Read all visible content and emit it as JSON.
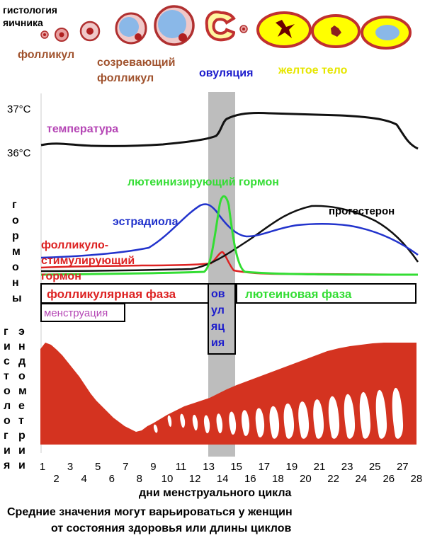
{
  "ovary": {
    "title_line1": "гистология",
    "title_line2": "яичника",
    "stage_follicle": "фолликул",
    "stage_maturing_line1": "созревающий",
    "stage_maturing_line2": "фолликул",
    "stage_ovulation": "овуляция",
    "stage_corpus_luteum": "желтое тело"
  },
  "temperature": {
    "tick_high": "37°C",
    "tick_low": "36°C",
    "label": "температура"
  },
  "hormones": {
    "side_label": [
      "г",
      "о",
      "р",
      "м",
      "о",
      "н",
      "ы"
    ],
    "lh": "лютеинизирующий гормон",
    "estradiol": "эстрадиола",
    "progesterone": "прогестерон",
    "fsh_line1": "фолликуло-",
    "fsh_line2": "стимулирующий",
    "fsh_line3": "гормон"
  },
  "phases": {
    "follicular": "фолликулярная фаза",
    "luteal": "лютеиновая фаза",
    "menstruation": "менструация",
    "ovulation_vertical": [
      "ов",
      "ул",
      "яц",
      "ия"
    ]
  },
  "endometrium": {
    "side_col1": [
      "г",
      "и",
      "с",
      "т",
      "о",
      "л",
      "о",
      "г",
      "и",
      "я"
    ],
    "side_col2": [
      "э",
      "н",
      "д",
      "о",
      "м",
      "е",
      "т",
      "р",
      "и",
      "и"
    ]
  },
  "x_axis": {
    "days": [
      "1",
      "2",
      "3",
      "4",
      "5",
      "6",
      "7",
      "8",
      "9",
      "10",
      "11",
      "12",
      "13",
      "14",
      "15",
      "16",
      "17",
      "18",
      "19",
      "20",
      "21",
      "22",
      "23",
      "24",
      "25",
      "26",
      "27",
      "28"
    ],
    "label": "дни менструального цикла"
  },
  "footnote": {
    "line1": "Средние значения могут варьироваться у женщин",
    "line2": "от состояния здоровья или длины циклов"
  },
  "colors": {
    "follicle_label": "#a0522d",
    "ovulation_label": "#1c1ccc",
    "corpus_label": "#e6e600",
    "temperature_label": "#b546b5",
    "lh_curve": "#33dd33",
    "estradiol_curve": "#2233cc",
    "progesterone_curve": "#111111",
    "fsh_curve": "#dd2222",
    "endometrium": "#d43320",
    "ovulation_band": "#bdbdbd"
  }
}
